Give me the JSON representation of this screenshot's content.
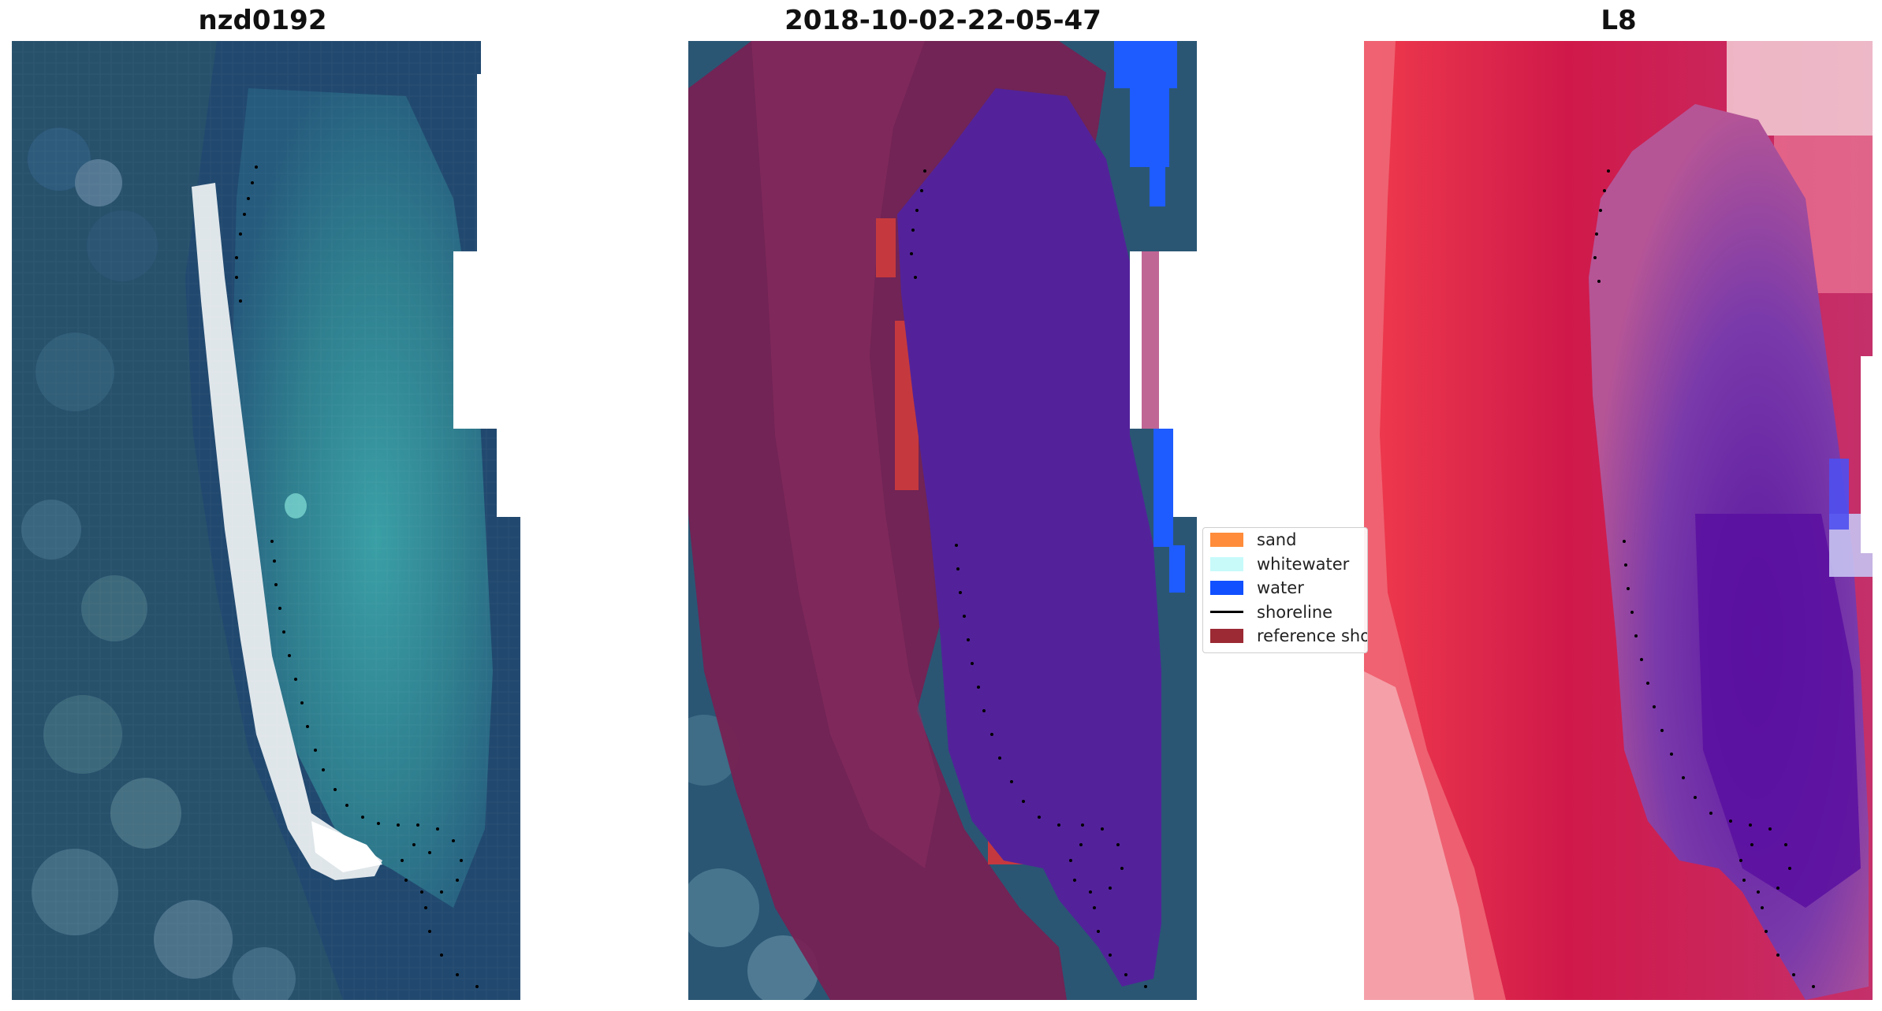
{
  "panels": [
    {
      "title": "nzd0192"
    },
    {
      "title": "2018-10-02-22-05-47"
    },
    {
      "title": "L8"
    }
  ],
  "legend": {
    "items": [
      {
        "label": "sand",
        "color": "#ff8c3a",
        "kind": "patch"
      },
      {
        "label": "whitewater",
        "color": "#c8fafa",
        "kind": "patch"
      },
      {
        "label": "water",
        "color": "#1050ff",
        "kind": "patch"
      },
      {
        "label": "shoreline",
        "color": "#000000",
        "kind": "line"
      },
      {
        "label": "reference shoreline",
        "color": "#9b2a34",
        "kind": "patch"
      }
    ]
  },
  "colors": {
    "ocean_dark": "#1f4a73",
    "lagoon": "#2f7e8c",
    "beach": "#e8eef0",
    "land_overlay": "#7a1f55",
    "water_overlay": "#53229a",
    "water_class": "#1e5cff",
    "index_red": "#d01a40",
    "index_purple": "#6a1fa8"
  }
}
